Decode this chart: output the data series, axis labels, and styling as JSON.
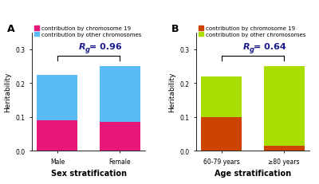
{
  "panel_A": {
    "label": "A",
    "categories": [
      "Male",
      "Female"
    ],
    "chr19": [
      0.09,
      0.085
    ],
    "other": [
      0.135,
      0.165
    ],
    "chr19_color": "#E8187A",
    "other_color": "#5BBCF5",
    "rg_value": "= 0.96",
    "xlabel": "Sex stratification",
    "ylabel": "Heritability",
    "ylim": [
      0,
      0.35
    ],
    "yticks": [
      0.0,
      0.1,
      0.2,
      0.3
    ],
    "ytick_labels": [
      "0.0",
      "0.1",
      "0.2",
      "0.3"
    ],
    "legend_labels": [
      "contribution by chromosome 19",
      "contribution by other chromosomes"
    ]
  },
  "panel_B": {
    "label": "B",
    "categories": [
      "60-79 years",
      "≥80 years"
    ],
    "chr19": [
      0.1,
      0.015
    ],
    "other": [
      0.12,
      0.235
    ],
    "chr19_color": "#CC4400",
    "other_color": "#AADD00",
    "rg_value": "= 0.64",
    "xlabel": "Age stratification",
    "ylabel": "Heritability",
    "ylim": [
      0,
      0.35
    ],
    "yticks": [
      0.0,
      0.1,
      0.2,
      0.3
    ],
    "ytick_labels": [
      "0.0",
      "0.1",
      "0.2",
      "0.3"
    ],
    "legend_labels": [
      "contribution by chromosome 19",
      "contribution by other chromosomes"
    ]
  },
  "background_color": "#FFFFFF",
  "rg_color": "#1A1A8C",
  "rg_fontsize": 8,
  "tick_fontsize": 5.5,
  "axis_label_fontsize": 7,
  "ylabel_fontsize": 6.5,
  "legend_fontsize": 5,
  "panel_label_fontsize": 9,
  "bar_width": 0.65
}
